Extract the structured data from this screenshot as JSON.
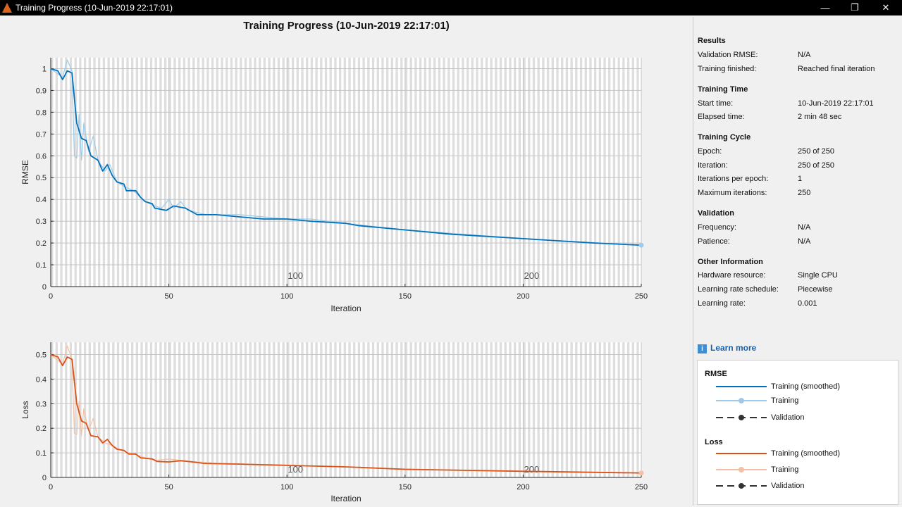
{
  "window": {
    "title": "Training Progress (10-Jun-2019 22:17:01)",
    "controls": {
      "minimize": "—",
      "maximize": "❐",
      "close": "✕"
    }
  },
  "figure": {
    "title": "Training Progress (10-Jun-2019 22:17:01)"
  },
  "chart_data": [
    {
      "type": "line",
      "ylabel": "RMSE",
      "xlabel": "Iteration",
      "xlim": [
        0,
        250
      ],
      "ylim": [
        0,
        1.05
      ],
      "x_ticks": [
        0,
        50,
        100,
        150,
        200,
        250
      ],
      "y_ticks": [
        0,
        0.1,
        0.2,
        0.3,
        0.4,
        0.5,
        0.6,
        0.7,
        0.8,
        0.9,
        1
      ],
      "epoch_labels": [
        "100",
        "200"
      ],
      "grid": true,
      "series": [
        {
          "name": "Training (smoothed)",
          "color": "#0072bd",
          "points": [
            [
              0,
              1.0
            ],
            [
              3,
              0.99
            ],
            [
              5,
              0.95
            ],
            [
              7,
              0.99
            ],
            [
              9,
              0.98
            ],
            [
              11,
              0.75
            ],
            [
              13,
              0.68
            ],
            [
              15,
              0.67
            ],
            [
              17,
              0.6
            ],
            [
              20,
              0.58
            ],
            [
              22,
              0.53
            ],
            [
              24,
              0.56
            ],
            [
              26,
              0.51
            ],
            [
              28,
              0.48
            ],
            [
              31,
              0.47
            ],
            [
              32,
              0.44
            ],
            [
              36,
              0.44
            ],
            [
              38,
              0.41
            ],
            [
              40,
              0.39
            ],
            [
              43,
              0.38
            ],
            [
              44,
              0.36
            ],
            [
              49,
              0.35
            ],
            [
              52,
              0.37
            ],
            [
              57,
              0.36
            ],
            [
              62,
              0.33
            ],
            [
              70,
              0.33
            ],
            [
              80,
              0.32
            ],
            [
              90,
              0.31
            ],
            [
              100,
              0.31
            ],
            [
              110,
              0.3
            ],
            [
              125,
              0.29
            ],
            [
              130,
              0.28
            ],
            [
              150,
              0.26
            ],
            [
              170,
              0.24
            ],
            [
              200,
              0.22
            ],
            [
              230,
              0.2
            ],
            [
              250,
              0.19
            ]
          ]
        },
        {
          "name": "Training",
          "color": "#9ecae9",
          "points": [
            [
              0,
              1.0
            ],
            [
              5,
              0.96
            ],
            [
              7,
              1.04
            ],
            [
              9,
              0.99
            ],
            [
              10,
              0.6
            ],
            [
              11,
              0.59
            ],
            [
              12,
              0.79
            ],
            [
              13,
              0.58
            ],
            [
              14,
              0.75
            ],
            [
              16,
              0.62
            ],
            [
              18,
              0.69
            ],
            [
              20,
              0.58
            ],
            [
              23,
              0.53
            ],
            [
              25,
              0.56
            ],
            [
              28,
              0.48
            ],
            [
              31,
              0.46
            ],
            [
              35,
              0.44
            ],
            [
              40,
              0.39
            ],
            [
              44,
              0.37
            ],
            [
              47,
              0.36
            ],
            [
              50,
              0.4
            ],
            [
              52,
              0.36
            ],
            [
              55,
              0.39
            ],
            [
              58,
              0.35
            ],
            [
              62,
              0.34
            ],
            [
              66,
              0.33
            ],
            [
              70,
              0.33
            ],
            [
              80,
              0.33
            ],
            [
              90,
              0.32
            ],
            [
              100,
              0.31
            ],
            [
              110,
              0.31
            ],
            [
              125,
              0.29
            ],
            [
              150,
              0.26
            ],
            [
              200,
              0.22
            ],
            [
              250,
              0.19
            ]
          ]
        }
      ]
    },
    {
      "type": "line",
      "ylabel": "Loss",
      "xlabel": "Iteration",
      "xlim": [
        0,
        250
      ],
      "ylim": [
        0,
        0.55
      ],
      "x_ticks": [
        0,
        50,
        100,
        150,
        200,
        250
      ],
      "y_ticks": [
        0,
        0.1,
        0.2,
        0.3,
        0.4,
        0.5
      ],
      "epoch_labels": [
        "100",
        "200"
      ],
      "grid": true,
      "series": [
        {
          "name": "Training (smoothed)",
          "color": "#d95319",
          "points": [
            [
              0,
              0.5
            ],
            [
              3,
              0.49
            ],
            [
              5,
              0.455
            ],
            [
              7,
              0.49
            ],
            [
              9,
              0.48
            ],
            [
              11,
              0.3
            ],
            [
              13,
              0.23
            ],
            [
              15,
              0.22
            ],
            [
              17,
              0.17
            ],
            [
              20,
              0.165
            ],
            [
              22,
              0.14
            ],
            [
              24,
              0.155
            ],
            [
              26,
              0.13
            ],
            [
              28,
              0.115
            ],
            [
              31,
              0.11
            ],
            [
              33,
              0.095
            ],
            [
              36,
              0.095
            ],
            [
              38,
              0.08
            ],
            [
              43,
              0.075
            ],
            [
              45,
              0.065
            ],
            [
              50,
              0.063
            ],
            [
              55,
              0.068
            ],
            [
              60,
              0.063
            ],
            [
              65,
              0.057
            ],
            [
              80,
              0.054
            ],
            [
              100,
              0.049
            ],
            [
              125,
              0.043
            ],
            [
              150,
              0.033
            ],
            [
              200,
              0.025
            ],
            [
              250,
              0.018
            ]
          ]
        },
        {
          "name": "Training",
          "color": "#f3c1a6",
          "points": [
            [
              0,
              0.5
            ],
            [
              5,
              0.46
            ],
            [
              7,
              0.535
            ],
            [
              9,
              0.48
            ],
            [
              10,
              0.18
            ],
            [
              11,
              0.175
            ],
            [
              12,
              0.31
            ],
            [
              13,
              0.17
            ],
            [
              14,
              0.28
            ],
            [
              16,
              0.19
            ],
            [
              18,
              0.24
            ],
            [
              20,
              0.165
            ],
            [
              23,
              0.14
            ],
            [
              26,
              0.13
            ],
            [
              30,
              0.11
            ],
            [
              35,
              0.095
            ],
            [
              40,
              0.08
            ],
            [
              45,
              0.07
            ],
            [
              50,
              0.075
            ],
            [
              55,
              0.07
            ],
            [
              60,
              0.065
            ],
            [
              70,
              0.058
            ],
            [
              100,
              0.05
            ],
            [
              150,
              0.034
            ],
            [
              200,
              0.025
            ],
            [
              250,
              0.018
            ]
          ]
        }
      ]
    }
  ],
  "results": {
    "heading": "Results",
    "rows": [
      {
        "label": "Validation RMSE:",
        "value": "N/A"
      },
      {
        "label": "Training finished:",
        "value": "Reached final iteration"
      }
    ]
  },
  "training_time": {
    "heading": "Training Time",
    "rows": [
      {
        "label": "Start time:",
        "value": "10-Jun-2019 22:17:01"
      },
      {
        "label": "Elapsed time:",
        "value": "2 min 48 sec"
      }
    ]
  },
  "training_cycle": {
    "heading": "Training Cycle",
    "rows": [
      {
        "label": "Epoch:",
        "value": "250 of 250"
      },
      {
        "label": "Iteration:",
        "value": "250 of 250"
      },
      {
        "label": "Iterations per epoch:",
        "value": "1"
      },
      {
        "label": "Maximum iterations:",
        "value": "250"
      }
    ]
  },
  "validation": {
    "heading": "Validation",
    "rows": [
      {
        "label": "Frequency:",
        "value": "N/A"
      },
      {
        "label": "Patience:",
        "value": "N/A"
      }
    ]
  },
  "other_info": {
    "heading": "Other Information",
    "rows": [
      {
        "label": "Hardware resource:",
        "value": "Single CPU"
      },
      {
        "label": "Learning rate schedule:",
        "value": "Piecewise"
      },
      {
        "label": "Learning rate:",
        "value": "0.001"
      }
    ]
  },
  "learn_more": {
    "icon": "info-icon",
    "label": "Learn more"
  },
  "legend": {
    "rmse": {
      "heading": "RMSE",
      "items": [
        {
          "label": "Training (smoothed)",
          "color": "#0072bd",
          "style": "solid"
        },
        {
          "label": "Training",
          "color": "#9ecae9",
          "style": "marker"
        },
        {
          "label": "Validation",
          "color": "#333333",
          "style": "dashed"
        }
      ]
    },
    "loss": {
      "heading": "Loss",
      "items": [
        {
          "label": "Training (smoothed)",
          "color": "#d95319",
          "style": "solid"
        },
        {
          "label": "Training",
          "color": "#f3c1a6",
          "style": "marker"
        },
        {
          "label": "Validation",
          "color": "#333333",
          "style": "dashed"
        }
      ]
    }
  }
}
